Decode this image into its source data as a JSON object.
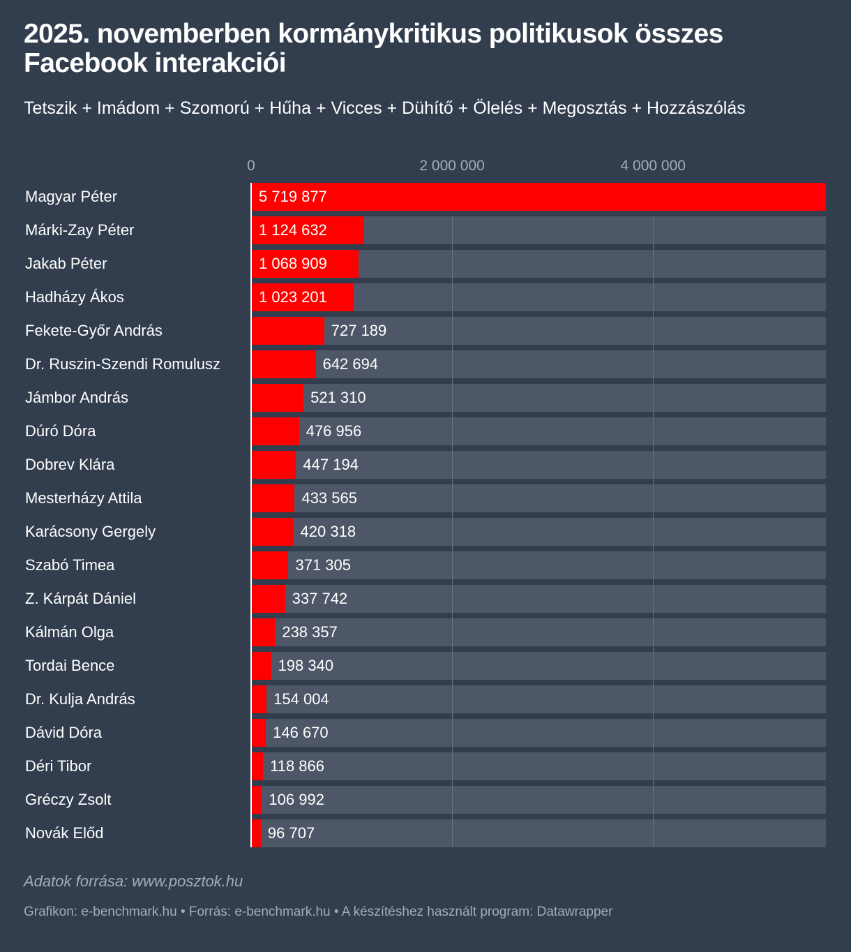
{
  "chart_data": {
    "type": "bar",
    "orientation": "horizontal",
    "title": "2025. novemberben kormánykritikus politikusok összes Facebook interakciói",
    "subtitle": "Tetszik + Imádom + Szomorú + Hűha + Vicces + Dühítő + Ölelés + Megosztás + Hozzászólás",
    "categories": [
      "Magyar Péter",
      "Márki-Zay Péter",
      "Jakab Péter",
      "Hadházy Ákos",
      "Fekete-Győr András",
      "Dr. Ruszin-Szendi Romulusz",
      "Jámbor András",
      "Dúró Dóra",
      "Dobrev Klára",
      "Mesterházy Attila",
      "Karácsony Gergely",
      "Szabó Timea",
      "Z. Kárpát Dániel",
      "Kálmán Olga",
      "Tordai Bence",
      "Dr. Kulja András",
      "Dávid Dóra",
      "Déri Tibor",
      "Gréczy Zsolt",
      "Novák Előd"
    ],
    "values": [
      5719877,
      1124632,
      1068909,
      1023201,
      727189,
      642694,
      521310,
      476956,
      447194,
      433565,
      420318,
      371305,
      337742,
      238357,
      198340,
      154004,
      146670,
      118866,
      106992,
      96707
    ],
    "value_labels": [
      "5 719 877",
      "1 124 632",
      "1 068 909",
      "1 023 201",
      "727 189",
      "642 694",
      "521 310",
      "476 956",
      "447 194",
      "433 565",
      "420 318",
      "371 305",
      "337 742",
      "238 357",
      "198 340",
      "154 004",
      "146 670",
      "118 866",
      "106 992",
      "96 707"
    ],
    "xlim": [
      0,
      5719877
    ],
    "x_ticks": [
      0,
      2000000,
      4000000
    ],
    "x_tick_labels": [
      "0",
      "2 000 000",
      "4 000 000"
    ],
    "grid": true,
    "colors": {
      "background": "#323d4e",
      "bar": "#ff0000",
      "bar_track": "#4e5767",
      "muted_text": "#a5acb6"
    }
  },
  "notes": {
    "source": "Adatok forrása: www.posztok.hu",
    "footer": "Grafikon: e-benchmark.hu • Forrás: e-benchmark.hu • A készítéshez használt program: Datawrapper"
  }
}
